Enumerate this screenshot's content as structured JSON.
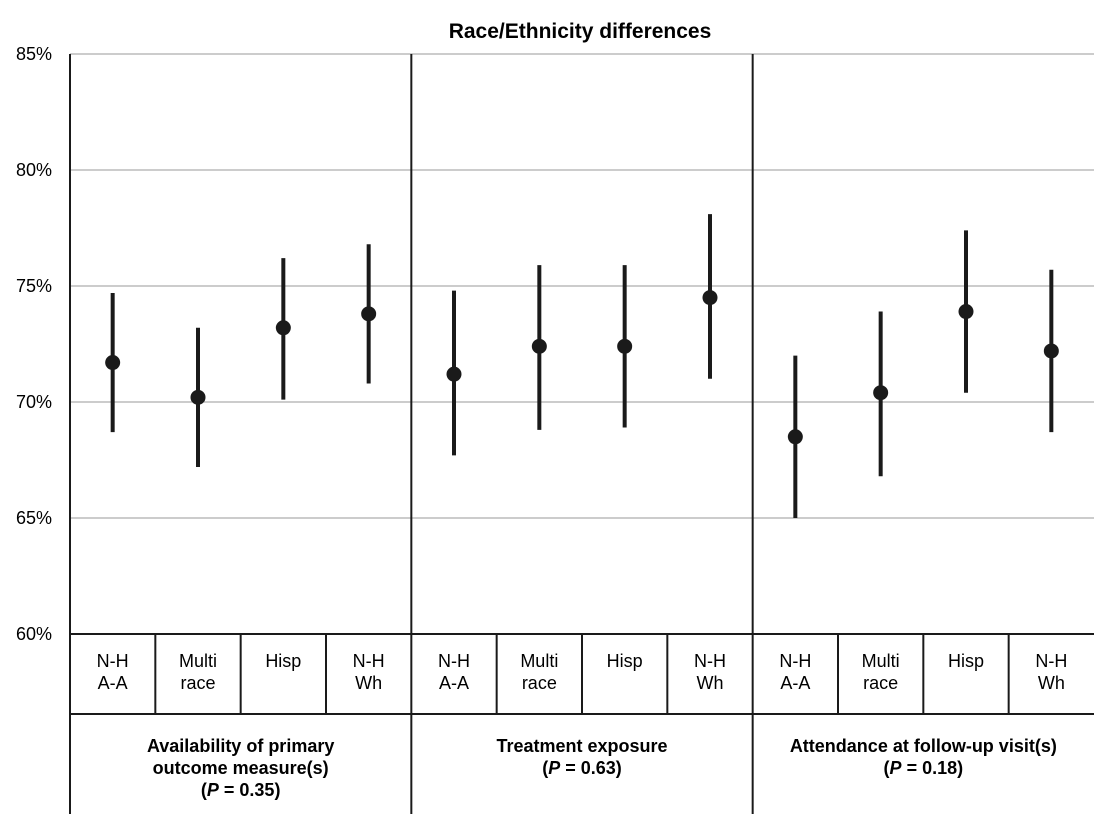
{
  "chart_data": {
    "type": "scatter",
    "title": "Race/Ethnicity differences",
    "ylim": [
      60,
      85
    ],
    "yticks": [
      "60%",
      "65%",
      "70%",
      "75%",
      "80%",
      "85%"
    ],
    "ytick_values": [
      60,
      65,
      70,
      75,
      80,
      85
    ],
    "grid": true,
    "groups": [
      {
        "label_lines": [
          "Availability of primary",
          "outcome measure(s)"
        ],
        "p_value": "0.35",
        "categories": [
          {
            "lines": [
              "N-H",
              "A-A"
            ],
            "value": 71.7,
            "low": 68.7,
            "high": 74.7
          },
          {
            "lines": [
              "Multi",
              "race"
            ],
            "value": 70.2,
            "low": 67.2,
            "high": 73.2
          },
          {
            "lines": [
              "Hisp"
            ],
            "value": 73.2,
            "low": 70.1,
            "high": 76.2
          },
          {
            "lines": [
              "N-H",
              "Wh"
            ],
            "value": 73.8,
            "low": 70.8,
            "high": 76.8
          }
        ]
      },
      {
        "label_lines": [
          "Treatment exposure"
        ],
        "p_value": "0.63",
        "categories": [
          {
            "lines": [
              "N-H",
              "A-A"
            ],
            "value": 71.2,
            "low": 67.7,
            "high": 74.8
          },
          {
            "lines": [
              "Multi",
              "race"
            ],
            "value": 72.4,
            "low": 68.8,
            "high": 75.9
          },
          {
            "lines": [
              "Hisp"
            ],
            "value": 72.4,
            "low": 68.9,
            "high": 75.9
          },
          {
            "lines": [
              "N-H",
              "Wh"
            ],
            "value": 74.5,
            "low": 71.0,
            "high": 78.1
          }
        ]
      },
      {
        "label_lines": [
          "Attendance at follow-up visit(s)"
        ],
        "p_value": "0.18",
        "categories": [
          {
            "lines": [
              "N-H",
              "A-A"
            ],
            "value": 68.5,
            "low": 65.0,
            "high": 72.0
          },
          {
            "lines": [
              "Multi",
              "race"
            ],
            "value": 70.4,
            "low": 66.8,
            "high": 73.9
          },
          {
            "lines": [
              "Hisp"
            ],
            "value": 73.9,
            "low": 70.4,
            "high": 77.4
          },
          {
            "lines": [
              "N-H",
              "Wh"
            ],
            "value": 72.2,
            "low": 68.7,
            "high": 75.7
          }
        ]
      }
    ]
  }
}
